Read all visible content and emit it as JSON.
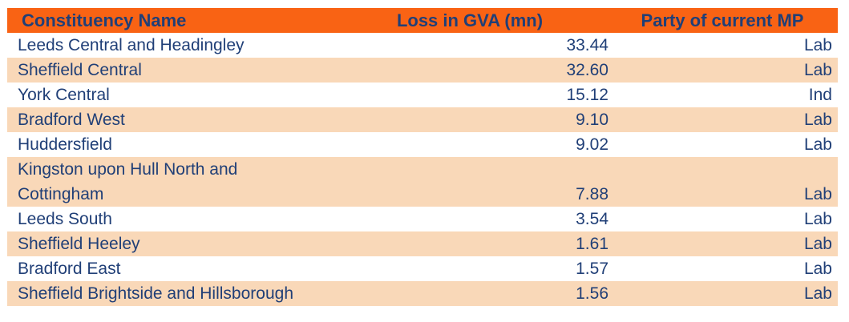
{
  "chart_data": {
    "type": "table",
    "columns": [
      "Constituency Name",
      "Loss in GVA (mn)",
      "Party of current MP"
    ],
    "rows": [
      [
        "Leeds Central and Headingley",
        "33.44",
        "Lab"
      ],
      [
        "Sheffield Central",
        "32.60",
        "Lab"
      ],
      [
        "York Central",
        "15.12",
        "Ind"
      ],
      [
        "Bradford West",
        "9.10",
        "Lab"
      ],
      [
        "Huddersfield",
        "9.02",
        "Lab"
      ],
      [
        "Kingston upon Hull North and Cottingham",
        "7.88",
        "Lab"
      ],
      [
        "Leeds South",
        "3.54",
        "Lab"
      ],
      [
        "Sheffield Heeley",
        "1.61",
        "Lab"
      ],
      [
        "Bradford East",
        "1.57",
        "Lab"
      ],
      [
        "Sheffield Brightside and Hillsborough",
        "1.56",
        "Lab"
      ]
    ]
  },
  "colors": {
    "header_bg": "#F96314",
    "row_stripe_bg": "#F9D8B8",
    "text": "#203F77",
    "background": "#FFFFFF"
  }
}
